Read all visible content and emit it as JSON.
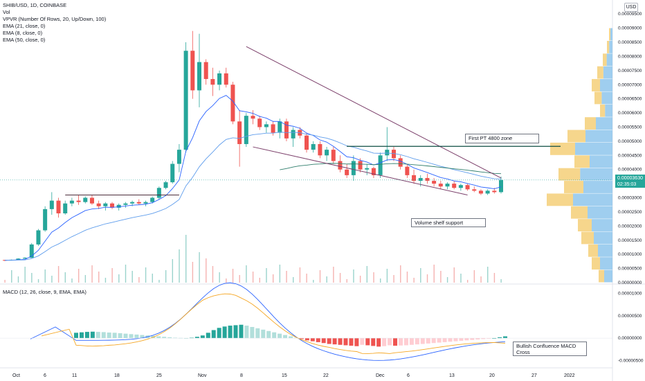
{
  "header": {
    "symbol": "SHIB/USD, 1D, COINBASE",
    "indicators": [
      "Vol",
      "VPVR (Number Of Rows, 20, Up/Down, 100)",
      "EMA (21, close, 0)",
      "EMA (8, close, 0)",
      "EMA (50, close, 0)"
    ],
    "macd_title": "MACD (12, 26, close, 9, EMA, EMA)",
    "currency": "USD"
  },
  "annotations": {
    "target": "First PT 4800 zone",
    "support": "Volume shelf support",
    "macd_note": "Bullish Confluence MACD Cross"
  },
  "price_tag": {
    "price": "0.00003630",
    "countdown": "02:35:03"
  },
  "colors": {
    "up": "#26a69a",
    "down": "#ef5350",
    "ema8": "#2962ff",
    "ema21": "#5d9cec",
    "ema50": "#2e7d6b",
    "signal": "#f5a623",
    "vpvr_up": "#8ec5ec",
    "vpvr_down": "#f5cf78"
  },
  "chart_data": [
    {
      "type": "candlestick",
      "title": "SHIB/USD, 1D, COINBASE",
      "y_ticks": [
        "0.00009500",
        "0.00009000",
        "0.00008500",
        "0.00008000",
        "0.00007500",
        "0.00007000",
        "0.00006500",
        "0.00006000",
        "0.00005500",
        "0.00005000",
        "0.00004500",
        "0.00004000",
        "0.00003500",
        "0.00003000",
        "0.00002500",
        "0.00002000",
        "0.00001500",
        "0.00001000",
        "0.00000500",
        "0.00000000"
      ],
      "x_ticks": [
        "Oct",
        "6",
        "11",
        "18",
        "25",
        "Nov",
        "8",
        "15",
        "22",
        "Dec",
        "6",
        "13",
        "20",
        "27",
        "2022"
      ],
      "ylim": [
        0,
        9.75e-05
      ],
      "candles_ohlc_x1e8": [
        [
          800,
          810,
          760,
          790
        ],
        [
          790,
          820,
          780,
          810
        ],
        [
          810,
          860,
          800,
          850
        ],
        [
          850,
          900,
          840,
          880
        ],
        [
          880,
          1400,
          870,
          1350
        ],
        [
          1350,
          1900,
          1300,
          1850
        ],
        [
          1850,
          2700,
          1800,
          2600
        ],
        [
          2600,
          3200,
          2400,
          2900
        ],
        [
          2900,
          3000,
          2300,
          2450
        ],
        [
          2450,
          2900,
          2400,
          2800
        ],
        [
          2800,
          3000,
          2700,
          2900
        ],
        [
          2900,
          3100,
          2750,
          2850
        ],
        [
          2850,
          3050,
          2800,
          3000
        ],
        [
          3000,
          3100,
          2750,
          2800
        ],
        [
          2800,
          2900,
          2600,
          2700
        ],
        [
          2700,
          2850,
          2550,
          2800
        ],
        [
          2800,
          2850,
          2600,
          2650
        ],
        [
          2650,
          2800,
          2550,
          2750
        ],
        [
          2750,
          2850,
          2650,
          2800
        ],
        [
          2800,
          2900,
          2700,
          2850
        ],
        [
          2850,
          2950,
          2750,
          2800
        ],
        [
          2800,
          2900,
          2700,
          2850
        ],
        [
          2850,
          3050,
          2800,
          3000
        ],
        [
          3000,
          3400,
          2950,
          3350
        ],
        [
          3350,
          3600,
          3300,
          3550
        ],
        [
          3550,
          4300,
          3500,
          4200
        ],
        [
          4200,
          4900,
          3900,
          4700
        ],
        [
          4700,
          8500,
          4600,
          8200
        ],
        [
          8200,
          8900,
          6500,
          6800
        ],
        [
          6800,
          8800,
          6200,
          7800
        ],
        [
          7800,
          7900,
          7000,
          7200
        ],
        [
          7200,
          7600,
          6600,
          7000
        ],
        [
          7000,
          7500,
          6800,
          7400
        ],
        [
          7400,
          7600,
          6900,
          7000
        ],
        [
          7000,
          7100,
          5600,
          5700
        ],
        [
          5700,
          6100,
          4100,
          4900
        ],
        [
          4900,
          6000,
          4800,
          5900
        ],
        [
          5900,
          6100,
          5600,
          5800
        ],
        [
          5800,
          5900,
          5400,
          5500
        ],
        [
          5500,
          5700,
          5300,
          5600
        ],
        [
          5600,
          5700,
          5200,
          5300
        ],
        [
          5300,
          5800,
          5100,
          5700
        ],
        [
          5700,
          5800,
          5000,
          5100
        ],
        [
          5100,
          5500,
          4800,
          5400
        ],
        [
          5400,
          5500,
          5100,
          5200
        ],
        [
          5200,
          5300,
          4600,
          4700
        ],
        [
          4700,
          5000,
          4600,
          4900
        ],
        [
          4900,
          5000,
          4400,
          4500
        ],
        [
          4500,
          4800,
          4300,
          4700
        ],
        [
          4700,
          4800,
          4200,
          4300
        ],
        [
          4300,
          4500,
          3900,
          4000
        ],
        [
          4000,
          4200,
          3700,
          3800
        ],
        [
          3800,
          4500,
          3600,
          4300
        ],
        [
          4300,
          4400,
          3900,
          4000
        ],
        [
          4000,
          4200,
          3800,
          4050
        ],
        [
          4050,
          4100,
          3700,
          3800
        ],
        [
          3800,
          4600,
          3700,
          4500
        ],
        [
          4500,
          5500,
          4300,
          4700
        ],
        [
          4700,
          4800,
          4300,
          4400
        ],
        [
          4400,
          4500,
          4000,
          4100
        ],
        [
          4100,
          4200,
          3700,
          3800
        ],
        [
          3800,
          4000,
          3500,
          3600
        ],
        [
          3600,
          3800,
          3400,
          3700
        ],
        [
          3700,
          3850,
          3500,
          3600
        ],
        [
          3600,
          3700,
          3400,
          3500
        ],
        [
          3500,
          3600,
          3300,
          3400
        ],
        [
          3400,
          3550,
          3300,
          3500
        ],
        [
          3500,
          3600,
          3300,
          3350
        ],
        [
          3350,
          3500,
          3250,
          3450
        ],
        [
          3450,
          3500,
          3250,
          3300
        ],
        [
          3300,
          3400,
          3200,
          3250
        ],
        [
          3250,
          3300,
          3100,
          3150
        ],
        [
          3150,
          3300,
          3100,
          3250
        ],
        [
          3250,
          3350,
          3150,
          3200
        ],
        [
          3200,
          3750,
          3150,
          3630
        ]
      ],
      "trendlines": [
        "falling wedge upper",
        "falling wedge lower",
        "horizontal 4800 resistance",
        "horizontal breakout level"
      ]
    },
    {
      "type": "bar",
      "title": "MACD (12, 26, close, 9, EMA, EMA)",
      "y_ticks": [
        "0.00001000",
        "0.00000500",
        "0.00000000",
        "-0.00000500"
      ],
      "histogram_x1e8": [
        120,
        130,
        140,
        145,
        140,
        135,
        125,
        120,
        110,
        100,
        90,
        80,
        70,
        60,
        50,
        40,
        30,
        20,
        10,
        5,
        0,
        10,
        30,
        60,
        120,
        180,
        230,
        260,
        280,
        290,
        300,
        280,
        250,
        220,
        190,
        160,
        130,
        100,
        70,
        40,
        10,
        -20,
        -50,
        -70,
        -90,
        -110,
        -130,
        -140,
        -150,
        -160,
        -170,
        -180,
        -150,
        -160,
        -175,
        -190,
        -180,
        -160,
        -170,
        -165,
        -160,
        -150,
        -140,
        -130,
        -120,
        -110,
        -100,
        -90,
        -80,
        -70,
        -60,
        -50,
        -40,
        -30,
        -20,
        -10,
        0,
        20,
        40
      ]
    }
  ]
}
